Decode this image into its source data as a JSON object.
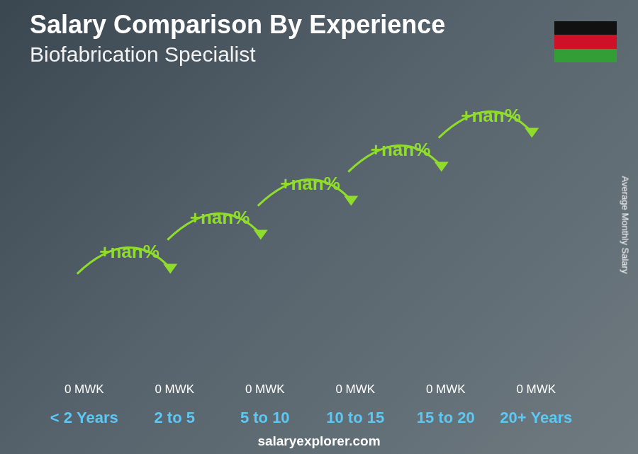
{
  "chart_data": {
    "type": "bar",
    "title": "Salary Comparison By Experience",
    "subtitle": "Biofabrication Specialist",
    "y_label": "Average Monthly Salary",
    "categories": [
      "< 2 Years",
      "2 to 5",
      "5 to 10",
      "10 to 15",
      "15 to 20",
      "20+ Years"
    ],
    "values": [
      0,
      0,
      0,
      0,
      0,
      0
    ],
    "value_labels": [
      "0 MWK",
      "0 MWK",
      "0 MWK",
      "0 MWK",
      "0 MWK",
      "0 MWK"
    ],
    "data_labels": true,
    "annotations": [
      "+nan%",
      "+nan%",
      "+nan%",
      "+nan%",
      "+nan%"
    ],
    "source": "salaryexplorer.com",
    "color": "#1ea7e8",
    "grid": false,
    "tick_labels": "x"
  }
}
